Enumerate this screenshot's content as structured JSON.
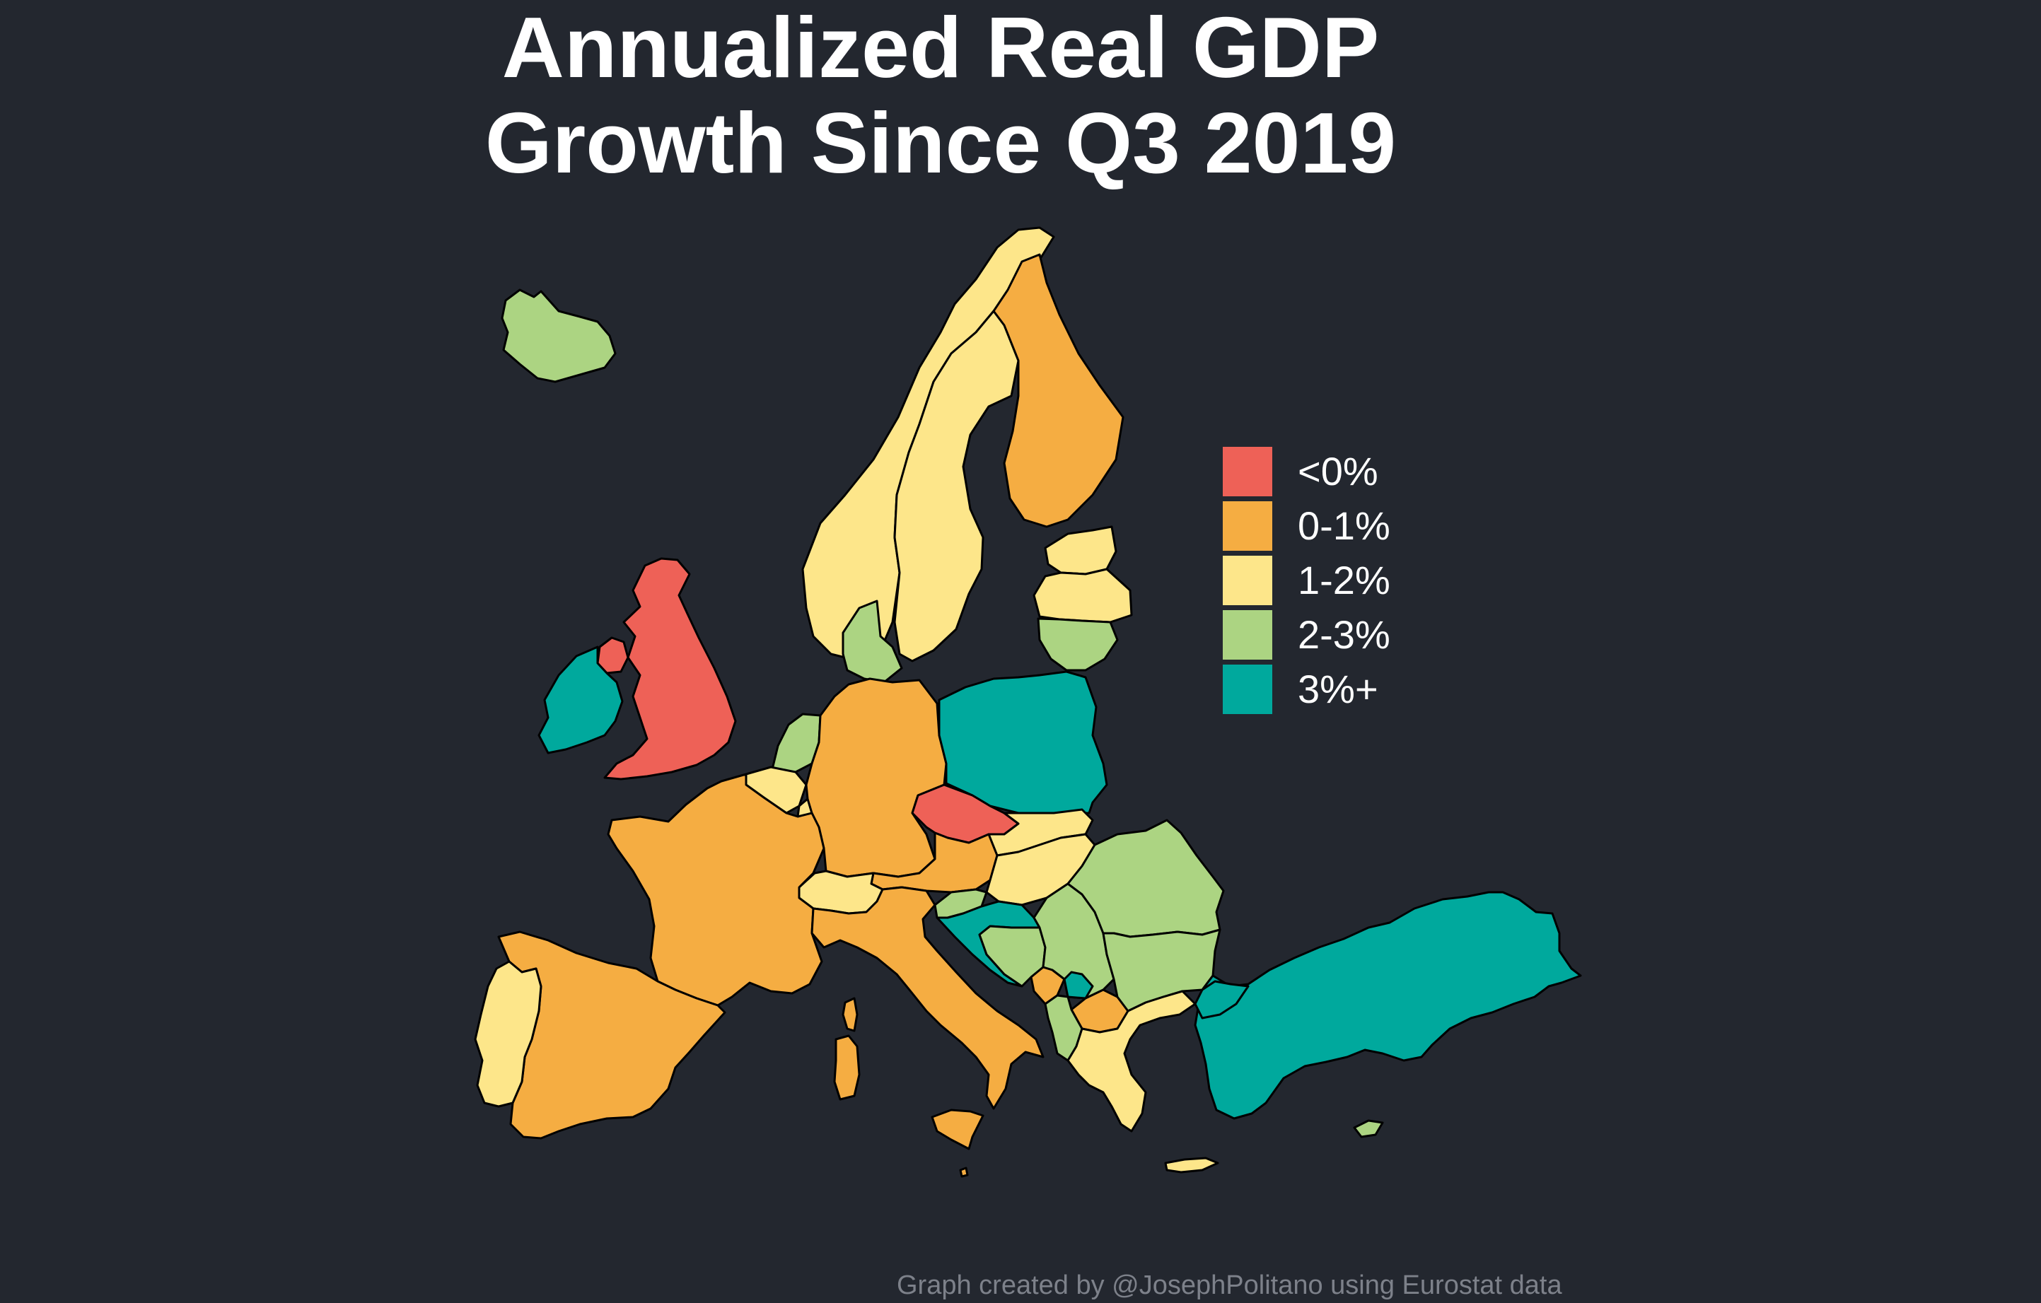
{
  "title": {
    "line1": "Annualized Real GDP",
    "line2": "Growth Since Q3 2019"
  },
  "legend": [
    {
      "label": "<0%",
      "color": "#ee6157"
    },
    {
      "label": "0-1%",
      "color": "#f5ad42"
    },
    {
      "label": "1-2%",
      "color": "#fde68a"
    },
    {
      "label": "2-3%",
      "color": "#acd482"
    },
    {
      "label": "3%+",
      "color": "#00a99d"
    }
  ],
  "countries": [
    {
      "name": "Iceland",
      "category": "2-3%"
    },
    {
      "name": "Norway",
      "category": "1-2%"
    },
    {
      "name": "Sweden",
      "category": "1-2%"
    },
    {
      "name": "Finland",
      "category": "0-1%"
    },
    {
      "name": "Estonia",
      "category": "1-2%"
    },
    {
      "name": "Latvia",
      "category": "1-2%"
    },
    {
      "name": "Lithuania",
      "category": "2-3%"
    },
    {
      "name": "Denmark",
      "category": "2-3%"
    },
    {
      "name": "United Kingdom",
      "category": "<0%"
    },
    {
      "name": "Ireland",
      "category": "3%+"
    },
    {
      "name": "Netherlands",
      "category": "2-3%"
    },
    {
      "name": "Belgium",
      "category": "1-2%"
    },
    {
      "name": "Luxembourg",
      "category": "1-2%"
    },
    {
      "name": "Germany",
      "category": "0-1%"
    },
    {
      "name": "Poland",
      "category": "3%+"
    },
    {
      "name": "Czechia",
      "category": "<0%"
    },
    {
      "name": "Slovakia",
      "category": "1-2%"
    },
    {
      "name": "Austria",
      "category": "0-1%"
    },
    {
      "name": "Hungary",
      "category": "1-2%"
    },
    {
      "name": "Switzerland",
      "category": "1-2%"
    },
    {
      "name": "France",
      "category": "0-1%"
    },
    {
      "name": "Spain",
      "category": "0-1%"
    },
    {
      "name": "Portugal",
      "category": "1-2%"
    },
    {
      "name": "Italy",
      "category": "0-1%"
    },
    {
      "name": "Slovenia",
      "category": "2-3%"
    },
    {
      "name": "Croatia",
      "category": "3%+"
    },
    {
      "name": "Bosnia and Herzegovina",
      "category": "2-3%"
    },
    {
      "name": "Serbia",
      "category": "2-3%"
    },
    {
      "name": "Montenegro",
      "category": "0-1%"
    },
    {
      "name": "Kosovo",
      "category": "3%+"
    },
    {
      "name": "North Macedonia",
      "category": "0-1%"
    },
    {
      "name": "Albania",
      "category": "2-3%"
    },
    {
      "name": "Romania",
      "category": "2-3%"
    },
    {
      "name": "Bulgaria",
      "category": "2-3%"
    },
    {
      "name": "Greece",
      "category": "1-2%"
    },
    {
      "name": "Turkey",
      "category": "3%+"
    },
    {
      "name": "Cyprus",
      "category": "2-3%"
    },
    {
      "name": "Malta",
      "category": "0-1%"
    }
  ],
  "credit": "Graph created by @JosephPolitano using Eurostat data"
}
